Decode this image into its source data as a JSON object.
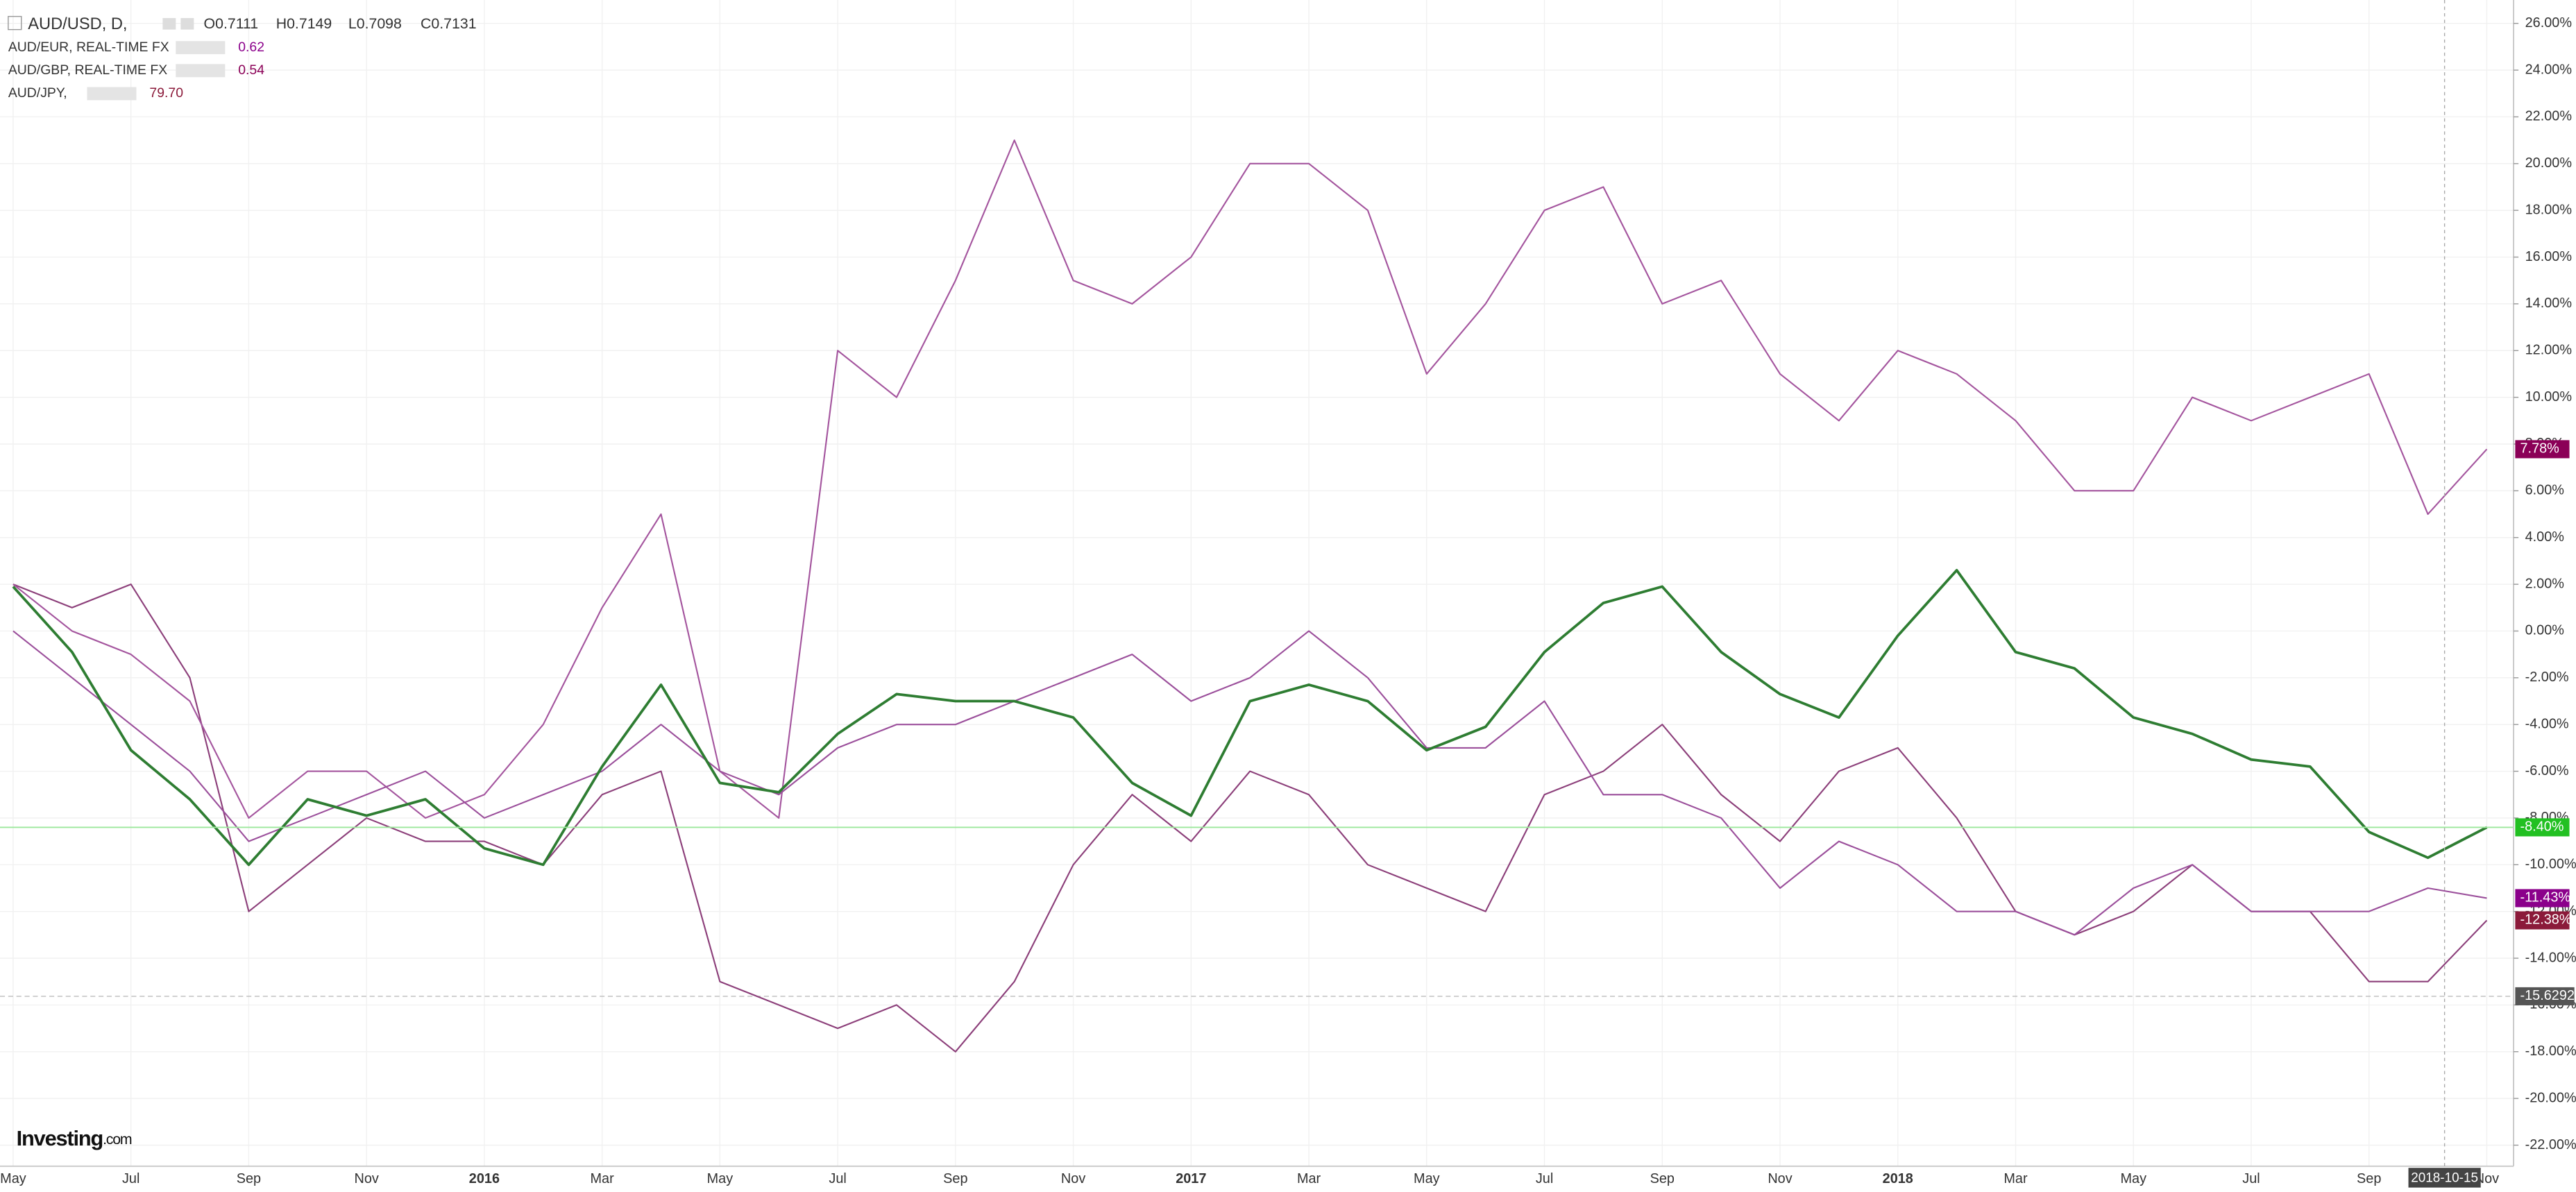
{
  "chart_data": {
    "type": "line",
    "legend": {
      "main_name": "AUD/USD, D,",
      "ohlc": [
        "O0.7111",
        "H0.7149",
        "L0.7098",
        "C0.7131"
      ]
    },
    "categories": [
      "May",
      null,
      "Jul",
      null,
      "Sep",
      null,
      "Nov",
      null,
      "2016",
      null,
      "Mar",
      null,
      "May",
      null,
      "Jul",
      null,
      "Sep",
      null,
      "Nov",
      null,
      "2017",
      null,
      "Mar",
      null,
      "May",
      null,
      "Jul",
      null,
      "Sep",
      null,
      "Nov",
      null,
      "2018",
      null,
      "Mar",
      null,
      "May",
      null,
      "Jul",
      null,
      "Sep",
      null,
      "Nov"
    ],
    "crosshair_label": "2018-10-15",
    "series": [
      {
        "name": "AUD/USD",
        "color": "#2e7d32",
        "label_color": "#22c022",
        "values": [
          1.9,
          -0.9,
          -5.1,
          -7.2,
          -10,
          -7.2,
          -7.9,
          -7.2,
          -9.3,
          -10,
          -5.8,
          -2.3,
          -6.5,
          -6.9,
          -4.4,
          -2.7,
          -3,
          -3,
          -3.7,
          -6.5,
          -7.9,
          -3,
          -2.3,
          -3,
          -5.1,
          -4.1,
          -0.9,
          1.2,
          1.9,
          -0.9,
          -2.7,
          -3.7,
          -0.2,
          2.6,
          -0.9,
          -1.6,
          -3.7,
          -4.4,
          -5.5,
          -5.8,
          -8.6,
          -9.7,
          -8.4
        ],
        "value_labels": [
          null,
          null,
          null,
          null,
          null,
          null,
          null,
          null,
          null,
          null,
          null,
          null,
          null,
          null,
          null,
          null,
          null,
          null,
          null,
          null,
          null,
          null,
          null,
          null,
          null,
          null,
          null,
          null,
          null,
          null,
          null,
          null,
          null,
          null,
          null,
          null,
          null,
          null,
          null,
          null,
          null,
          null,
          "-8.40%"
        ]
      },
      {
        "name": "AUD/EUR, REAL-TIME FX",
        "legend_value": "0.62",
        "color": "#9b4f9b",
        "label_color": "#8b008b",
        "values": [
          0,
          -2,
          -4,
          -6,
          -9,
          -8,
          -7,
          -6,
          -8,
          -7,
          -6,
          -4,
          -6,
          -7,
          -5,
          -4,
          -4,
          -3,
          -2,
          -1,
          -3,
          -2,
          0,
          -2,
          -5,
          -5,
          -3,
          -7,
          -7,
          -8,
          -11,
          -9,
          -10,
          -12,
          -12,
          -13,
          -11,
          -10,
          -12,
          -12,
          -12,
          -11,
          -11.43
        ],
        "value_labels": [
          null,
          null,
          null,
          null,
          null,
          null,
          null,
          null,
          null,
          null,
          null,
          null,
          null,
          null,
          null,
          null,
          null,
          null,
          null,
          null,
          null,
          null,
          null,
          null,
          null,
          null,
          null,
          null,
          null,
          null,
          null,
          null,
          null,
          null,
          null,
          null,
          null,
          null,
          null,
          null,
          null,
          null,
          "-11.43%"
        ]
      },
      {
        "name": "AUD/GBP, REAL-TIME FX",
        "legend_value": "0.54",
        "color": "#a4559e",
        "label_color": "#8b0057",
        "values": [
          2,
          0,
          -1,
          -3,
          -8,
          -6,
          -6,
          -8,
          -7,
          -4,
          1,
          5,
          -6,
          -8,
          12,
          10,
          15,
          21,
          15,
          14,
          16,
          20,
          20,
          18,
          11,
          14,
          18,
          19,
          14,
          15,
          11,
          9,
          12,
          11,
          9,
          6,
          6,
          10,
          9,
          10,
          11,
          5,
          7.78
        ],
        "value_labels": [
          null,
          null,
          null,
          null,
          null,
          null,
          null,
          null,
          null,
          null,
          null,
          null,
          null,
          null,
          null,
          null,
          null,
          null,
          null,
          null,
          null,
          null,
          null,
          null,
          null,
          null,
          null,
          null,
          null,
          null,
          null,
          null,
          null,
          null,
          null,
          null,
          null,
          null,
          null,
          null,
          null,
          null,
          "7.78%"
        ]
      },
      {
        "name": "AUD/JPY,",
        "legend_value": "79.70",
        "color": "#8c3f7a",
        "label_color": "#8b1a3a",
        "values": [
          2,
          1,
          2,
          -2,
          -12,
          -10,
          -8,
          -9,
          -9,
          -10,
          -7,
          -6,
          -15,
          -16,
          -17,
          -16,
          -18,
          -15,
          -10,
          -7,
          -9,
          -6,
          -7,
          -10,
          -11,
          -12,
          -7,
          -6,
          -4,
          -7,
          -9,
          -6,
          -5,
          -8,
          -12,
          -13,
          -12,
          -10,
          -12,
          -12,
          -15,
          -15,
          -12.38
        ],
        "value_labels": [
          null,
          null,
          null,
          null,
          null,
          null,
          null,
          null,
          null,
          null,
          null,
          null,
          null,
          null,
          null,
          null,
          null,
          null,
          null,
          null,
          null,
          null,
          null,
          null,
          null,
          null,
          null,
          null,
          null,
          null,
          null,
          null,
          null,
          null,
          null,
          null,
          null,
          null,
          null,
          null,
          null,
          null,
          "-12.38%"
        ]
      }
    ],
    "annotations": [
      {
        "value": -15.6292,
        "label": "-15.6292"
      }
    ],
    "ylim": [
      -22.9,
      27
    ],
    "yticks": [
      {
        "value": 26,
        "label": "26.00%"
      },
      {
        "value": 24,
        "label": "24.00%"
      },
      {
        "value": 22,
        "label": "22.00%"
      },
      {
        "value": 20,
        "label": "20.00%"
      },
      {
        "value": 18,
        "label": "18.00%"
      },
      {
        "value": 16,
        "label": "16.00%"
      },
      {
        "value": 14,
        "label": "14.00%"
      },
      {
        "value": 12,
        "label": "12.00%"
      },
      {
        "value": 10,
        "label": "10.00%"
      },
      {
        "value": 8,
        "label": "8.00%"
      },
      {
        "value": 6,
        "label": "6.00%"
      },
      {
        "value": 4,
        "label": "4.00%"
      },
      {
        "value": 2,
        "label": "2.00%"
      },
      {
        "value": 0,
        "label": "0.00%"
      },
      {
        "value": -2,
        "label": "-2.00%"
      },
      {
        "value": -4,
        "label": "-4.00%"
      },
      {
        "value": -6,
        "label": "-6.00%"
      },
      {
        "value": -8,
        "label": "-8.00%"
      },
      {
        "value": -10,
        "label": "-10.00%"
      },
      {
        "value": -12,
        "label": "-12.00%"
      },
      {
        "value": -14,
        "label": "-14.00%"
      },
      {
        "value": -16,
        "label": "-16.00%"
      },
      {
        "value": -18,
        "label": "-18.00%"
      },
      {
        "value": -20,
        "label": "-20.00%"
      },
      {
        "value": -22,
        "label": "-22.00%"
      }
    ],
    "grid": true,
    "logo": "Investing",
    "logo_suffix": ".com"
  }
}
